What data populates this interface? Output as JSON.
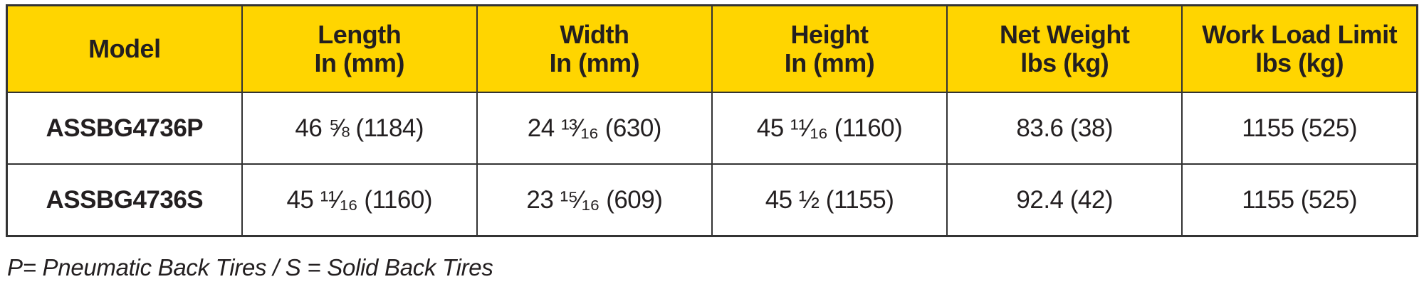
{
  "table": {
    "header_color": "#FFD500",
    "columns": [
      {
        "line1": "Model",
        "line2": ""
      },
      {
        "line1": "Length",
        "line2": "In (mm)"
      },
      {
        "line1": "Width",
        "line2": "In (mm)"
      },
      {
        "line1": "Height",
        "line2": "In (mm)"
      },
      {
        "line1": "Net Weight",
        "line2": "lbs (kg)"
      },
      {
        "line1": "Work Load Limit",
        "line2": "lbs (kg)"
      }
    ],
    "rows": [
      [
        "ASSBG4736P",
        "46 ⅝ (1184)",
        "24 ¹³⁄₁₆ (630)",
        "45 ¹¹⁄₁₆ (1160)",
        "83.6 (38)",
        "1155 (525)"
      ],
      [
        "ASSBG4736S",
        "45 ¹¹⁄₁₆ (1160)",
        "23 ¹⁵⁄₁₆ (609)",
        "45 ½ (1155)",
        "92.4 (42)",
        "1155 (525)"
      ]
    ]
  },
  "footnote": "P= Pneumatic Back Tires / S = Solid Back Tires"
}
